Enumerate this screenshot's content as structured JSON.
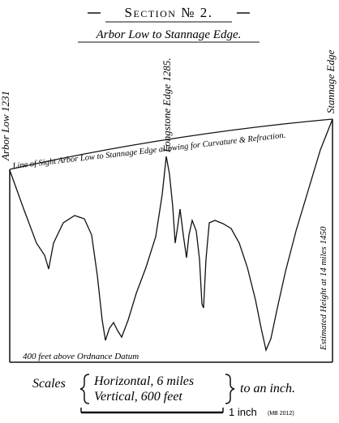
{
  "header": {
    "title": "Section № 2.",
    "subtitle": "Arbor Low to Stannage Edge."
  },
  "labels": {
    "left_station": "Arbor Low 1231",
    "middle_station": "Longstone Edge 1285.",
    "right_station": "Stannage Edge",
    "sight_line": "Line of Sight Arbor Low to Stannage Edge allowing for Curvature & Refraction.",
    "right_height": "Estimated Height at 14 miles 1450",
    "datum": "400 feet above Ordnance Datum"
  },
  "scales": {
    "label": "Scales",
    "horizontal": "Horizontal, 6 miles",
    "vertical": "Vertical, 600 feet",
    "suffix": "to an inch."
  },
  "scale_bar": {
    "label": "1 inch",
    "credit": "(MB 2012)"
  }
}
